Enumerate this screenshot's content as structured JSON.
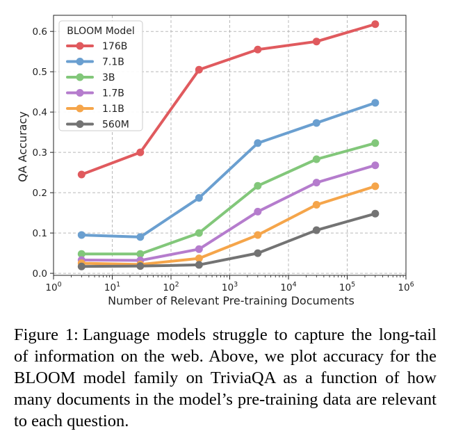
{
  "figure": {
    "caption_label": "Figure 1:",
    "caption_text": "Language models struggle to capture the long-tail of information on the web. Above, we plot accuracy for the BLOOM model family on TriviaQA as a function of how many documents in the model’s pre-training data are relevant to each question."
  },
  "chart_data": {
    "type": "line",
    "title": "",
    "xlabel": "Number of Relevant Pre-training Documents",
    "ylabel": "QA Accuracy",
    "x_scale": "log",
    "xlim": [
      1,
      1000000
    ],
    "ylim": [
      -0.005,
      0.64
    ],
    "x_ticks": [
      {
        "value": 1,
        "base": "10",
        "exp": "0"
      },
      {
        "value": 10,
        "base": "10",
        "exp": "1"
      },
      {
        "value": 100,
        "base": "10",
        "exp": "2"
      },
      {
        "value": 1000,
        "base": "10",
        "exp": "3"
      },
      {
        "value": 10000,
        "base": "10",
        "exp": "4"
      },
      {
        "value": 100000,
        "base": "10",
        "exp": "5"
      },
      {
        "value": 1000000,
        "base": "10",
        "exp": "6"
      }
    ],
    "y_ticks": [
      {
        "value": 0.0,
        "label": "0.0"
      },
      {
        "value": 0.1,
        "label": "0.1"
      },
      {
        "value": 0.2,
        "label": "0.2"
      },
      {
        "value": 0.3,
        "label": "0.3"
      },
      {
        "value": 0.4,
        "label": "0.4"
      },
      {
        "value": 0.5,
        "label": "0.5"
      },
      {
        "value": 0.6,
        "label": "0.6"
      }
    ],
    "grid": true,
    "legend_title": "BLOOM Model",
    "legend_position": "top-left",
    "x": [
      3,
      30,
      300,
      3000,
      30000,
      300000
    ],
    "series": [
      {
        "name": "176B",
        "color": "#e05a5e",
        "values": [
          0.245,
          0.3,
          0.505,
          0.555,
          0.575,
          0.618
        ]
      },
      {
        "name": "7.1B",
        "color": "#6a9fd0",
        "values": [
          0.095,
          0.09,
          0.187,
          0.323,
          0.373,
          0.423
        ]
      },
      {
        "name": "3B",
        "color": "#82c77a",
        "values": [
          0.048,
          0.048,
          0.1,
          0.217,
          0.283,
          0.323
        ]
      },
      {
        "name": "1.7B",
        "color": "#b57ccd",
        "values": [
          0.033,
          0.032,
          0.06,
          0.153,
          0.225,
          0.268
        ]
      },
      {
        "name": "1.1B",
        "color": "#f5a54a",
        "values": [
          0.025,
          0.022,
          0.037,
          0.095,
          0.17,
          0.216
        ]
      },
      {
        "name": "560M",
        "color": "#737373",
        "values": [
          0.017,
          0.018,
          0.021,
          0.05,
          0.107,
          0.148
        ]
      }
    ]
  }
}
